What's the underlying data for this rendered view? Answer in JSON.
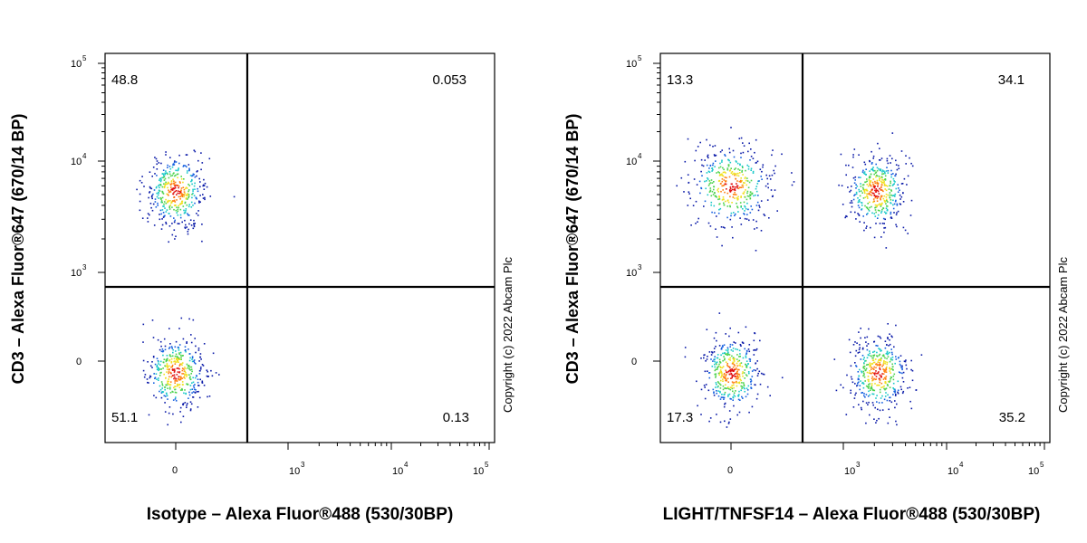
{
  "chart_data": [
    {
      "type": "scatter",
      "subtype": "flow-cytometry-density-dot-plot",
      "xlabel": "Isotype – Alexa Fluor®488 (530/30BP)",
      "ylabel": "CD3 – Alexa Fluor®647 (670/14 BP)",
      "x_scale": "biexponential",
      "y_scale": "biexponential",
      "x_ticks": [
        {
          "base": "0",
          "exp": ""
        },
        {
          "base": "10",
          "exp": "3"
        },
        {
          "base": "10",
          "exp": "4"
        },
        {
          "base": "10",
          "exp": "5"
        }
      ],
      "y_ticks": [
        {
          "base": "0",
          "exp": ""
        },
        {
          "base": "10",
          "exp": "3"
        },
        {
          "base": "10",
          "exp": "4"
        },
        {
          "base": "10",
          "exp": "5"
        }
      ],
      "quadrant_gates": {
        "x": 700,
        "y": 700
      },
      "quadrant_percentages": {
        "top_left": "48.8",
        "top_right": "0.053",
        "bottom_left": "51.1",
        "bottom_right": "0.13"
      },
      "populations": [
        {
          "quadrant": "top_left",
          "x_center": 0,
          "y_center": 4000
        },
        {
          "quadrant": "bottom_left",
          "x_center": 0,
          "y_center": 0
        }
      ],
      "copyright": "Copyright (c) 2022 Abcam Plc",
      "colormap": [
        "#0a1aa8",
        "#1560e0",
        "#18c8c8",
        "#4cd34c",
        "#f0e020",
        "#ff8010",
        "#e01010"
      ]
    },
    {
      "type": "scatter",
      "subtype": "flow-cytometry-density-dot-plot",
      "xlabel": "LIGHT/TNFSF14 – Alexa Fluor®488 (530/30BP)",
      "ylabel": "CD3 – Alexa Fluor®647 (670/14 BP)",
      "x_scale": "biexponential",
      "y_scale": "biexponential",
      "x_ticks": [
        {
          "base": "0",
          "exp": ""
        },
        {
          "base": "10",
          "exp": "3"
        },
        {
          "base": "10",
          "exp": "4"
        },
        {
          "base": "10",
          "exp": "5"
        }
      ],
      "y_ticks": [
        {
          "base": "0",
          "exp": ""
        },
        {
          "base": "10",
          "exp": "3"
        },
        {
          "base": "10",
          "exp": "4"
        },
        {
          "base": "10",
          "exp": "5"
        }
      ],
      "quadrant_gates": {
        "x": 700,
        "y": 700
      },
      "quadrant_percentages": {
        "top_left": "13.3",
        "top_right": "34.1",
        "bottom_left": "17.3",
        "bottom_right": "35.2"
      },
      "populations": [
        {
          "quadrant": "top_left",
          "x_center": 0,
          "y_center": 4500
        },
        {
          "quadrant": "top_right",
          "x_center": 1700,
          "y_center": 4000
        },
        {
          "quadrant": "bottom_left",
          "x_center": 0,
          "y_center": 0
        },
        {
          "quadrant": "bottom_right",
          "x_center": 1800,
          "y_center": 0
        }
      ],
      "copyright": "Copyright (c) 2022 Abcam Plc",
      "colormap": [
        "#0a1aa8",
        "#1560e0",
        "#18c8c8",
        "#4cd34c",
        "#f0e020",
        "#ff8010",
        "#e01010"
      ]
    }
  ]
}
